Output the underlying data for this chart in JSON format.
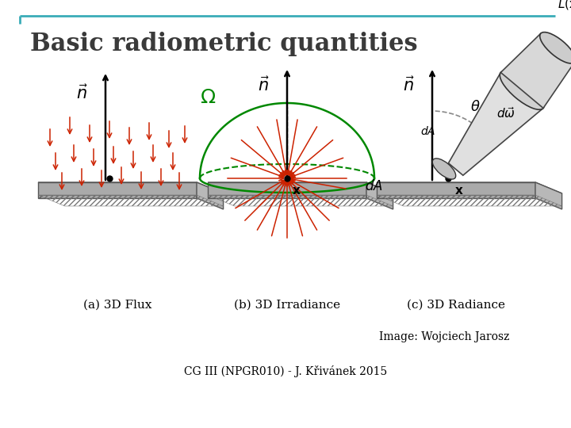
{
  "title": "Basic radiometric quantities",
  "title_fontsize": 22,
  "title_fontweight": "bold",
  "title_color": "#3a3a3a",
  "background_color": "#ffffff",
  "border_color": "#3aacb8",
  "credit_text": "Image: Wojciech Jarosz",
  "credit_fontsize": 10,
  "footer_text": "CG III (NPGR010) - J. Křivánek 2015",
  "footer_fontsize": 10,
  "panel_a_label": "(a) 3D Flux",
  "panel_b_label": "(b) 3D Irradiance",
  "panel_c_label": "(c) 3D Radiance",
  "label_fontsize": 11,
  "arrow_color": "#cc2200",
  "normal_color": "#000000",
  "omega_color": "#008800",
  "surface_color": "#d0d0d0",
  "surface_edge_color": "#555555",
  "dot_color": "#000000"
}
